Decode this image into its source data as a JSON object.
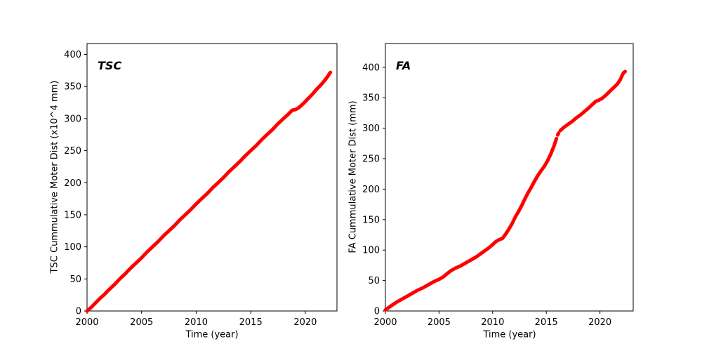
{
  "figure": {
    "background": "#ffffff",
    "axis_color": "#000000",
    "line_color": "#ff0000"
  },
  "chart_data": [
    {
      "id": "tsc",
      "type": "line",
      "panel_label": "TSC",
      "xlabel": "Time (year)",
      "ylabel": "TSC Cummulative Moter Dist (x10^4 mm)",
      "xlim": [
        2000,
        2022.9
      ],
      "ylim": [
        0,
        417
      ],
      "xticks": [
        2000,
        2005,
        2010,
        2015,
        2020
      ],
      "yticks": [
        0,
        50,
        100,
        150,
        200,
        250,
        300,
        350,
        400
      ],
      "grid": false,
      "legend": false,
      "line_color": "#ff0000",
      "series": [
        {
          "name": "TSC cumulative motor distance",
          "segments": [
            [
              [
                2000.0,
                0
              ],
              [
                2000.4,
                6
              ],
              [
                2000.8,
                13
              ],
              [
                2001.2,
                20
              ],
              [
                2001.6,
                26
              ],
              [
                2002,
                33
              ],
              [
                2002.5,
                41
              ],
              [
                2003,
                50
              ],
              [
                2003.5,
                58
              ],
              [
                2004,
                67
              ],
              [
                2004.5,
                75
              ],
              [
                2005,
                83
              ],
              [
                2005.5,
                92
              ],
              [
                2006,
                100
              ],
              [
                2006.5,
                108
              ],
              [
                2007,
                117
              ],
              [
                2007.5,
                125
              ],
              [
                2008,
                133
              ],
              [
                2008.5,
                142
              ],
              [
                2009,
                150
              ],
              [
                2009.5,
                158
              ],
              [
                2010,
                167
              ],
              [
                2010.5,
                175
              ],
              [
                2011,
                183
              ],
              [
                2011.5,
                192
              ],
              [
                2012,
                200
              ],
              [
                2012.5,
                208
              ],
              [
                2013,
                217
              ],
              [
                2013.5,
                225
              ],
              [
                2014,
                233
              ],
              [
                2014.5,
                242
              ],
              [
                2015,
                250
              ],
              [
                2015.5,
                258
              ],
              [
                2016,
                267
              ],
              [
                2016.5,
                275
              ],
              [
                2017,
                283
              ],
              [
                2017.5,
                292
              ],
              [
                2018,
                300
              ],
              [
                2018.4,
                306
              ],
              [
                2018.8,
                313
              ],
              [
                2019.1,
                314
              ],
              [
                2019.4,
                317
              ],
              [
                2019.8,
                323
              ],
              [
                2020.2,
                330
              ],
              [
                2020.6,
                337
              ],
              [
                2021,
                345
              ],
              [
                2021.4,
                352
              ],
              [
                2021.8,
                360
              ],
              [
                2022.1,
                367
              ],
              [
                2022.25,
                371
              ],
              [
                2022.3,
                372
              ]
            ]
          ]
        }
      ]
    },
    {
      "id": "fa",
      "type": "line",
      "panel_label": "FA",
      "xlabel": "Time (year)",
      "ylabel": "FA Cummulative Moter Dist (mm)",
      "xlim": [
        2000,
        2023.1
      ],
      "ylim": [
        0,
        439
      ],
      "xticks": [
        2000,
        2005,
        2010,
        2015,
        2020
      ],
      "yticks": [
        0,
        50,
        100,
        150,
        200,
        250,
        300,
        350,
        400
      ],
      "grid": false,
      "legend": false,
      "line_color": "#ff0000",
      "series": [
        {
          "name": "FA cumulative motor distance",
          "segments": [
            [
              [
                2000,
                2
              ],
              [
                2000.5,
                8
              ],
              [
                2001,
                14
              ],
              [
                2001.5,
                19
              ],
              [
                2002,
                24
              ],
              [
                2002.5,
                29
              ],
              [
                2003,
                34
              ],
              [
                2003.5,
                38
              ],
              [
                2004,
                43
              ],
              [
                2004.5,
                48
              ],
              [
                2005,
                52
              ],
              [
                2005.4,
                56
              ],
              [
                2005.8,
                62
              ],
              [
                2006.1,
                66
              ],
              [
                2006.5,
                70
              ],
              [
                2007,
                74
              ],
              [
                2007.5,
                79
              ],
              [
                2008,
                84
              ],
              [
                2008.4,
                88
              ],
              [
                2008.8,
                93
              ],
              [
                2009.2,
                98
              ],
              [
                2009.6,
                103
              ],
              [
                2010,
                109
              ],
              [
                2010.3,
                114
              ],
              [
                2010.6,
                117
              ],
              [
                2010.9,
                119
              ],
              [
                2011.2,
                126
              ],
              [
                2011.5,
                134
              ],
              [
                2011.8,
                143
              ],
              [
                2012.1,
                154
              ],
              [
                2012.4,
                163
              ],
              [
                2012.7,
                173
              ],
              [
                2013,
                184
              ],
              [
                2013.3,
                194
              ],
              [
                2013.6,
                203
              ],
              [
                2013.9,
                213
              ],
              [
                2014.2,
                222
              ],
              [
                2014.5,
                230
              ],
              [
                2014.8,
                237
              ],
              [
                2015.1,
                246
              ],
              [
                2015.4,
                257
              ],
              [
                2015.7,
                270
              ],
              [
                2015.95,
                283
              ]
            ],
            [
              [
                2016.05,
                289
              ],
              [
                2016.15,
                292
              ]
            ],
            [
              [
                2016.3,
                296
              ],
              [
                2016.6,
                301
              ],
              [
                2017,
                306
              ],
              [
                2017.4,
                311
              ],
              [
                2017.8,
                317
              ],
              [
                2018.2,
                322
              ],
              [
                2018.6,
                328
              ],
              [
                2019,
                334
              ],
              [
                2019.3,
                339
              ],
              [
                2019.6,
                344
              ],
              [
                2019.9,
                346
              ],
              [
                2020.2,
                349
              ],
              [
                2020.6,
                355
              ],
              [
                2021,
                362
              ],
              [
                2021.3,
                367
              ],
              [
                2021.6,
                372
              ],
              [
                2021.9,
                380
              ],
              [
                2022.05,
                386
              ],
              [
                2022.2,
                391
              ],
              [
                2022.35,
                393
              ]
            ]
          ]
        }
      ]
    }
  ]
}
